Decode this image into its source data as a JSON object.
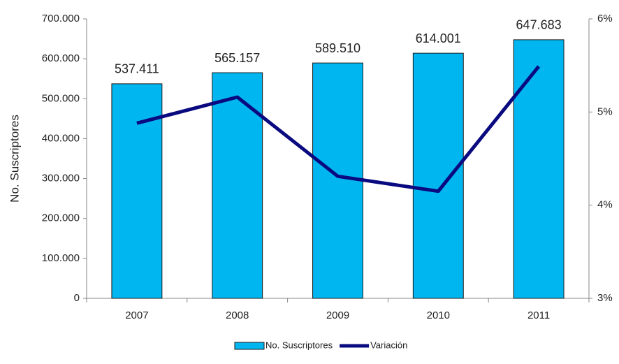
{
  "chart_data": {
    "type": "bar-line",
    "y_label": "No. Suscriptores",
    "categories": [
      "2007",
      "2008",
      "2009",
      "2010",
      "2011"
    ],
    "series": [
      {
        "name": "No. Suscriptores",
        "type": "bar",
        "color": "#00b6f0",
        "values": [
          537411,
          565157,
          589510,
          614001,
          647683
        ],
        "value_labels": [
          "537.411",
          "565.157",
          "589.510",
          "614.001",
          "647.683"
        ]
      },
      {
        "name": "Variación",
        "type": "line",
        "axis": "y2",
        "color": "#0a0a80",
        "values": [
          4.88,
          5.16,
          4.31,
          4.15,
          5.49
        ]
      }
    ],
    "ylim": [
      0,
      700000
    ],
    "yticks": [
      0,
      {
        "value": 100000,
        "label": "100.000"
      },
      {
        "value": 200000,
        "label": "200.000"
      },
      {
        "value": 300000,
        "label": "300.000"
      },
      {
        "value": 400000,
        "label": "400.000"
      },
      {
        "value": 500000,
        "label": "500.000"
      },
      {
        "value": 600000,
        "label": "600.000"
      },
      {
        "value": 700000,
        "label": "700.000"
      }
    ],
    "y2lim": [
      3,
      6
    ],
    "y2ticks": [
      {
        "value": 3,
        "label": "3%"
      },
      {
        "value": 4,
        "label": "4%"
      },
      {
        "value": 5,
        "label": "5%"
      },
      {
        "value": 6,
        "label": "6%"
      }
    ],
    "legend": "bottom"
  }
}
